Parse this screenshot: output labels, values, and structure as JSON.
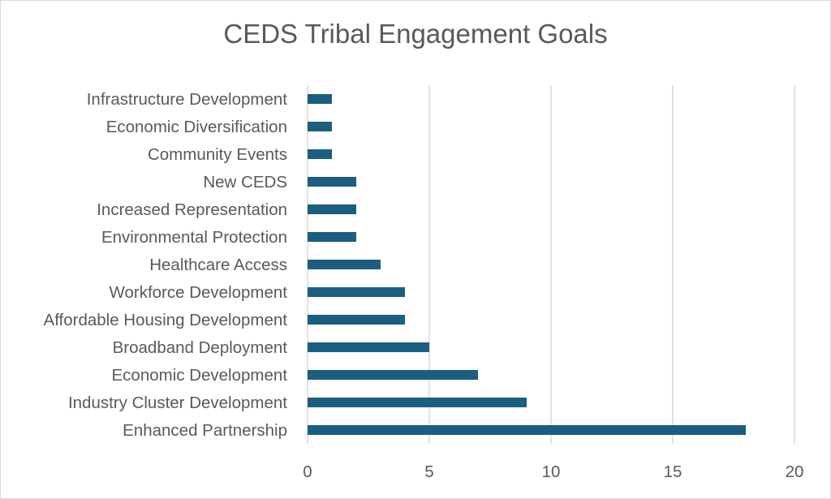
{
  "chart_data": {
    "type": "bar",
    "orientation": "horizontal",
    "title": "CEDS Tribal Engagement Goals",
    "xlabel": "",
    "ylabel": "",
    "categories": [
      "Infrastructure Development",
      "Economic Diversification",
      "Community Events",
      "New CEDS",
      "Increased Representation",
      "Environmental Protection",
      "Healthcare Access",
      "Workforce Development",
      "Affordable Housing Development",
      "Broadband Deployment",
      "Economic Development",
      "Industry Cluster Development",
      "Enhanced Partnership"
    ],
    "values": [
      1,
      1,
      1,
      2,
      2,
      2,
      3,
      4,
      4,
      5,
      7,
      9,
      18
    ],
    "xlim": [
      0,
      20
    ],
    "xticks": [
      0,
      5,
      10,
      15,
      20
    ],
    "grid": "vertical",
    "legend": "none",
    "bar_color": "#1b5e80",
    "grid_color": "#d9d9d9"
  }
}
